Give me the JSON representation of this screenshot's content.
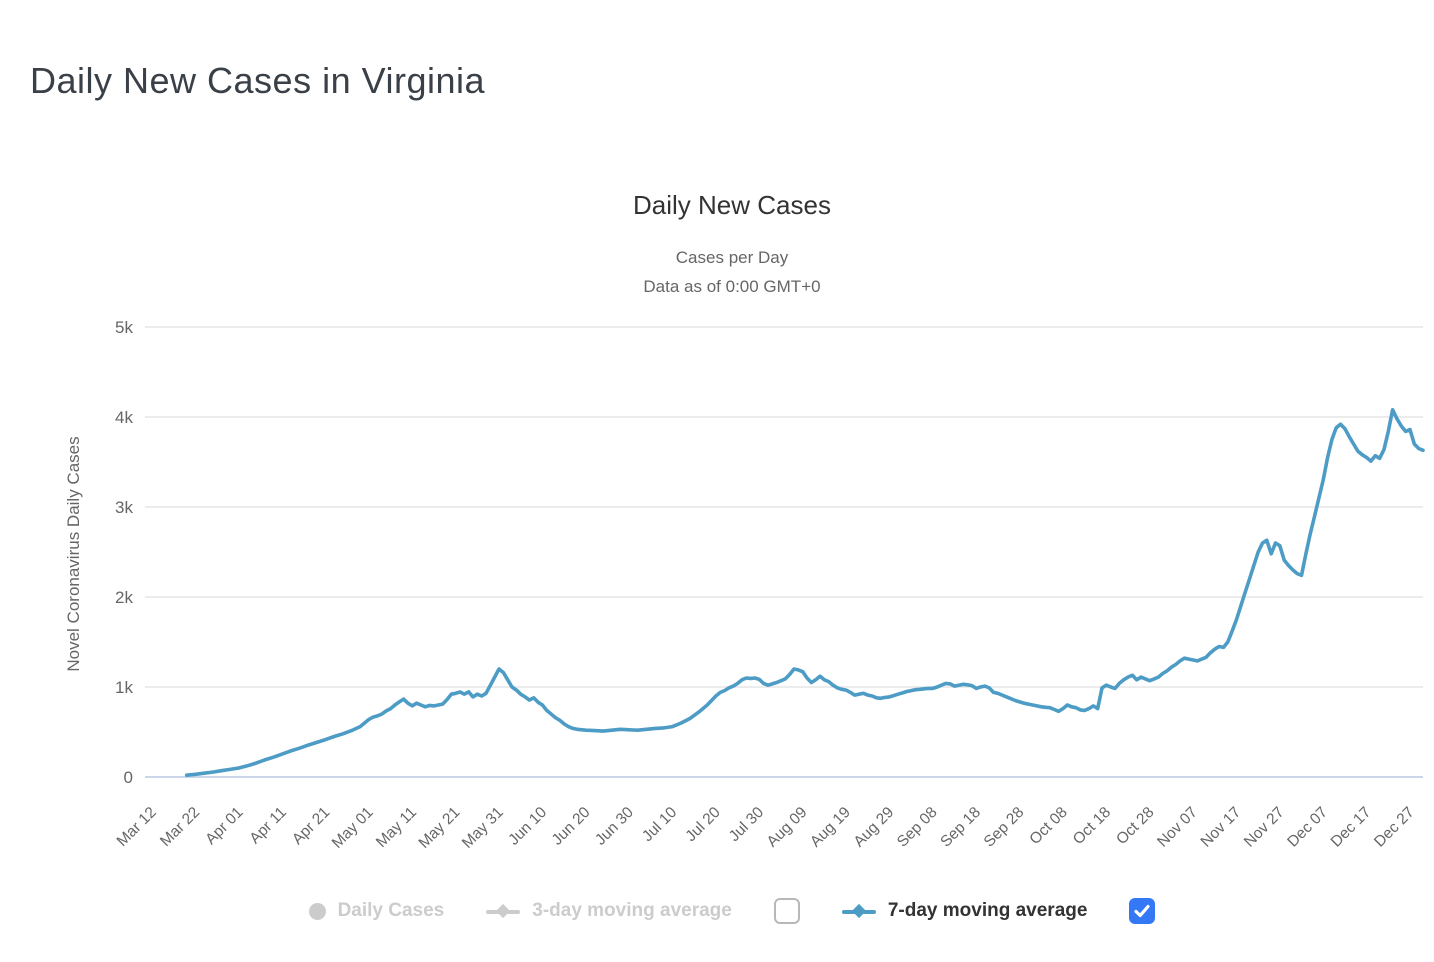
{
  "page": {
    "title": "Daily New Cases in Virginia"
  },
  "chart": {
    "title": "Daily New Cases",
    "subtitle_line1": "Cases per Day",
    "subtitle_line2": "Data as of 0:00 GMT+0",
    "y_axis_title": "Novel Coronavirus Daily Cases"
  },
  "legend": {
    "daily_cases_label": "Daily Cases",
    "three_day_label": "3-day moving average",
    "seven_day_label": "7-day moving average",
    "daily_cases_enabled": false,
    "three_day_enabled": false,
    "three_day_checkbox_checked": false,
    "seven_day_enabled": true,
    "seven_day_checkbox_checked": true
  },
  "colors": {
    "series_line": "#4d9cc5",
    "gridline": "#e6e6e6",
    "x_axis_line": "#ccd6eb",
    "axis_label": "#666666",
    "title": "#333333",
    "legend_disabled": "#cccccc",
    "checkbox_checked": "#3478f6"
  },
  "chart_data": {
    "type": "line",
    "title": "Daily New Cases",
    "subtitle": "Cases per Day / Data as of 0:00 GMT+0",
    "ylabel": "Novel Coronavirus Daily Cases",
    "ylim": [
      0,
      5000
    ],
    "y_tick_labels": [
      "0",
      "1k",
      "2k",
      "3k",
      "4k",
      "5k"
    ],
    "y_tick_values": [
      0,
      1000,
      2000,
      3000,
      4000,
      5000
    ],
    "x_start": "2020-03-12",
    "x_end": "2020-12-30",
    "x_tick_interval_days": 10,
    "x_tick_labels": [
      "Mar 12",
      "Mar 22",
      "Apr 01",
      "Apr 11",
      "Apr 21",
      "May 01",
      "May 11",
      "May 21",
      "May 31",
      "Jun 10",
      "Jun 20",
      "Jun 30",
      "Jul 10",
      "Jul 20",
      "Jul 30",
      "Aug 09",
      "Aug 19",
      "Aug 29",
      "Sep 08",
      "Sep 18",
      "Sep 28",
      "Oct 08",
      "Oct 18",
      "Oct 28",
      "Nov 07",
      "Nov 17",
      "Nov 27",
      "Dec 07",
      "Dec 17",
      "Dec 27"
    ],
    "grid": true,
    "legend_position": "bottom",
    "series": [
      {
        "name": "7-day moving average",
        "color": "#4d9cc5",
        "points": [
          [
            "2020-03-20",
            20
          ],
          [
            "2020-03-22",
            30
          ],
          [
            "2020-03-24",
            42
          ],
          [
            "2020-03-26",
            55
          ],
          [
            "2020-03-28",
            70
          ],
          [
            "2020-03-30",
            85
          ],
          [
            "2020-04-01",
            100
          ],
          [
            "2020-04-03",
            125
          ],
          [
            "2020-04-05",
            155
          ],
          [
            "2020-04-07",
            190
          ],
          [
            "2020-04-09",
            220
          ],
          [
            "2020-04-11",
            255
          ],
          [
            "2020-04-13",
            290
          ],
          [
            "2020-04-15",
            320
          ],
          [
            "2020-04-17",
            355
          ],
          [
            "2020-04-19",
            385
          ],
          [
            "2020-04-21",
            415
          ],
          [
            "2020-04-23",
            450
          ],
          [
            "2020-04-25",
            480
          ],
          [
            "2020-04-27",
            515
          ],
          [
            "2020-04-29",
            560
          ],
          [
            "2020-05-01",
            640
          ],
          [
            "2020-05-02",
            665
          ],
          [
            "2020-05-03",
            680
          ],
          [
            "2020-05-04",
            700
          ],
          [
            "2020-05-05",
            735
          ],
          [
            "2020-05-06",
            760
          ],
          [
            "2020-05-07",
            800
          ],
          [
            "2020-05-08",
            835
          ],
          [
            "2020-05-09",
            865
          ],
          [
            "2020-05-10",
            820
          ],
          [
            "2020-05-11",
            790
          ],
          [
            "2020-05-12",
            820
          ],
          [
            "2020-05-13",
            800
          ],
          [
            "2020-05-14",
            780
          ],
          [
            "2020-05-15",
            795
          ],
          [
            "2020-05-16",
            790
          ],
          [
            "2020-05-17",
            800
          ],
          [
            "2020-05-18",
            810
          ],
          [
            "2020-05-19",
            860
          ],
          [
            "2020-05-20",
            920
          ],
          [
            "2020-05-21",
            930
          ],
          [
            "2020-05-22",
            945
          ],
          [
            "2020-05-23",
            920
          ],
          [
            "2020-05-24",
            945
          ],
          [
            "2020-05-25",
            890
          ],
          [
            "2020-05-26",
            920
          ],
          [
            "2020-05-27",
            900
          ],
          [
            "2020-05-28",
            930
          ],
          [
            "2020-05-29",
            1020
          ],
          [
            "2020-05-30",
            1110
          ],
          [
            "2020-05-31",
            1200
          ],
          [
            "2020-06-01",
            1160
          ],
          [
            "2020-06-02",
            1080
          ],
          [
            "2020-06-03",
            1000
          ],
          [
            "2020-06-04",
            965
          ],
          [
            "2020-06-05",
            920
          ],
          [
            "2020-06-06",
            890
          ],
          [
            "2020-06-07",
            855
          ],
          [
            "2020-06-08",
            880
          ],
          [
            "2020-06-09",
            830
          ],
          [
            "2020-06-10",
            800
          ],
          [
            "2020-06-11",
            740
          ],
          [
            "2020-06-12",
            700
          ],
          [
            "2020-06-13",
            660
          ],
          [
            "2020-06-14",
            630
          ],
          [
            "2020-06-15",
            590
          ],
          [
            "2020-06-16",
            560
          ],
          [
            "2020-06-17",
            540
          ],
          [
            "2020-06-18",
            530
          ],
          [
            "2020-06-20",
            520
          ],
          [
            "2020-06-22",
            515
          ],
          [
            "2020-06-24",
            510
          ],
          [
            "2020-06-26",
            520
          ],
          [
            "2020-06-28",
            530
          ],
          [
            "2020-06-30",
            525
          ],
          [
            "2020-07-02",
            520
          ],
          [
            "2020-07-04",
            530
          ],
          [
            "2020-07-06",
            540
          ],
          [
            "2020-07-08",
            545
          ],
          [
            "2020-07-10",
            560
          ],
          [
            "2020-07-12",
            600
          ],
          [
            "2020-07-14",
            650
          ],
          [
            "2020-07-16",
            720
          ],
          [
            "2020-07-18",
            800
          ],
          [
            "2020-07-20",
            900
          ],
          [
            "2020-07-21",
            940
          ],
          [
            "2020-07-22",
            960
          ],
          [
            "2020-07-23",
            990
          ],
          [
            "2020-07-24",
            1010
          ],
          [
            "2020-07-25",
            1040
          ],
          [
            "2020-07-26",
            1080
          ],
          [
            "2020-07-27",
            1100
          ],
          [
            "2020-07-28",
            1095
          ],
          [
            "2020-07-29",
            1100
          ],
          [
            "2020-07-30",
            1085
          ],
          [
            "2020-07-31",
            1040
          ],
          [
            "2020-08-01",
            1020
          ],
          [
            "2020-08-02",
            1035
          ],
          [
            "2020-08-03",
            1050
          ],
          [
            "2020-08-04",
            1070
          ],
          [
            "2020-08-05",
            1090
          ],
          [
            "2020-08-06",
            1140
          ],
          [
            "2020-08-07",
            1200
          ],
          [
            "2020-08-08",
            1190
          ],
          [
            "2020-08-09",
            1170
          ],
          [
            "2020-08-10",
            1100
          ],
          [
            "2020-08-11",
            1050
          ],
          [
            "2020-08-12",
            1080
          ],
          [
            "2020-08-13",
            1120
          ],
          [
            "2020-08-14",
            1080
          ],
          [
            "2020-08-15",
            1060
          ],
          [
            "2020-08-16",
            1020
          ],
          [
            "2020-08-17",
            990
          ],
          [
            "2020-08-18",
            975
          ],
          [
            "2020-08-19",
            965
          ],
          [
            "2020-08-20",
            940
          ],
          [
            "2020-08-21",
            910
          ],
          [
            "2020-08-22",
            920
          ],
          [
            "2020-08-23",
            930
          ],
          [
            "2020-08-24",
            910
          ],
          [
            "2020-08-25",
            900
          ],
          [
            "2020-08-26",
            880
          ],
          [
            "2020-08-27",
            875
          ],
          [
            "2020-08-28",
            885
          ],
          [
            "2020-08-29",
            890
          ],
          [
            "2020-08-30",
            905
          ],
          [
            "2020-08-31",
            920
          ],
          [
            "2020-09-01",
            935
          ],
          [
            "2020-09-02",
            950
          ],
          [
            "2020-09-03",
            960
          ],
          [
            "2020-09-04",
            970
          ],
          [
            "2020-09-05",
            975
          ],
          [
            "2020-09-06",
            980
          ],
          [
            "2020-09-07",
            985
          ],
          [
            "2020-09-08",
            985
          ],
          [
            "2020-09-09",
            1000
          ],
          [
            "2020-09-10",
            1020
          ],
          [
            "2020-09-11",
            1040
          ],
          [
            "2020-09-12",
            1035
          ],
          [
            "2020-09-13",
            1010
          ],
          [
            "2020-09-14",
            1020
          ],
          [
            "2020-09-15",
            1030
          ],
          [
            "2020-09-16",
            1025
          ],
          [
            "2020-09-17",
            1015
          ],
          [
            "2020-09-18",
            985
          ],
          [
            "2020-09-19",
            1000
          ],
          [
            "2020-09-20",
            1010
          ],
          [
            "2020-09-21",
            990
          ],
          [
            "2020-09-22",
            940
          ],
          [
            "2020-09-23",
            930
          ],
          [
            "2020-09-24",
            910
          ],
          [
            "2020-09-25",
            890
          ],
          [
            "2020-09-26",
            870
          ],
          [
            "2020-09-27",
            850
          ],
          [
            "2020-09-28",
            835
          ],
          [
            "2020-09-29",
            820
          ],
          [
            "2020-09-30",
            810
          ],
          [
            "2020-10-01",
            800
          ],
          [
            "2020-10-02",
            790
          ],
          [
            "2020-10-03",
            780
          ],
          [
            "2020-10-04",
            775
          ],
          [
            "2020-10-05",
            770
          ],
          [
            "2020-10-06",
            750
          ],
          [
            "2020-10-07",
            730
          ],
          [
            "2020-10-08",
            760
          ],
          [
            "2020-10-09",
            800
          ],
          [
            "2020-10-10",
            780
          ],
          [
            "2020-10-11",
            770
          ],
          [
            "2020-10-12",
            745
          ],
          [
            "2020-10-13",
            740
          ],
          [
            "2020-10-14",
            760
          ],
          [
            "2020-10-15",
            790
          ],
          [
            "2020-10-16",
            760
          ],
          [
            "2020-10-17",
            990
          ],
          [
            "2020-10-18",
            1020
          ],
          [
            "2020-10-19",
            1000
          ],
          [
            "2020-10-20",
            985
          ],
          [
            "2020-10-21",
            1040
          ],
          [
            "2020-10-22",
            1080
          ],
          [
            "2020-10-23",
            1110
          ],
          [
            "2020-10-24",
            1130
          ],
          [
            "2020-10-25",
            1080
          ],
          [
            "2020-10-26",
            1110
          ],
          [
            "2020-10-27",
            1090
          ],
          [
            "2020-10-28",
            1070
          ],
          [
            "2020-10-29",
            1090
          ],
          [
            "2020-10-30",
            1110
          ],
          [
            "2020-10-31",
            1150
          ],
          [
            "2020-11-01",
            1180
          ],
          [
            "2020-11-02",
            1220
          ],
          [
            "2020-11-03",
            1250
          ],
          [
            "2020-11-04",
            1290
          ],
          [
            "2020-11-05",
            1320
          ],
          [
            "2020-11-06",
            1310
          ],
          [
            "2020-11-07",
            1300
          ],
          [
            "2020-11-08",
            1290
          ],
          [
            "2020-11-09",
            1310
          ],
          [
            "2020-11-10",
            1330
          ],
          [
            "2020-11-11",
            1380
          ],
          [
            "2020-11-12",
            1420
          ],
          [
            "2020-11-13",
            1450
          ],
          [
            "2020-11-14",
            1440
          ],
          [
            "2020-11-15",
            1500
          ],
          [
            "2020-11-16",
            1620
          ],
          [
            "2020-11-17",
            1750
          ],
          [
            "2020-11-18",
            1900
          ],
          [
            "2020-11-19",
            2050
          ],
          [
            "2020-11-20",
            2200
          ],
          [
            "2020-11-21",
            2350
          ],
          [
            "2020-11-22",
            2500
          ],
          [
            "2020-11-23",
            2600
          ],
          [
            "2020-11-24",
            2630
          ],
          [
            "2020-11-25",
            2480
          ],
          [
            "2020-11-26",
            2600
          ],
          [
            "2020-11-27",
            2570
          ],
          [
            "2020-11-28",
            2410
          ],
          [
            "2020-11-29",
            2350
          ],
          [
            "2020-11-30",
            2300
          ],
          [
            "2020-12-01",
            2260
          ],
          [
            "2020-12-02",
            2240
          ],
          [
            "2020-12-03",
            2480
          ],
          [
            "2020-12-04",
            2700
          ],
          [
            "2020-12-05",
            2900
          ],
          [
            "2020-12-06",
            3100
          ],
          [
            "2020-12-07",
            3300
          ],
          [
            "2020-12-08",
            3550
          ],
          [
            "2020-12-09",
            3750
          ],
          [
            "2020-12-10",
            3880
          ],
          [
            "2020-12-11",
            3920
          ],
          [
            "2020-12-12",
            3870
          ],
          [
            "2020-12-13",
            3780
          ],
          [
            "2020-12-14",
            3700
          ],
          [
            "2020-12-15",
            3620
          ],
          [
            "2020-12-16",
            3580
          ],
          [
            "2020-12-17",
            3550
          ],
          [
            "2020-12-18",
            3510
          ],
          [
            "2020-12-19",
            3570
          ],
          [
            "2020-12-20",
            3540
          ],
          [
            "2020-12-21",
            3640
          ],
          [
            "2020-12-22",
            3840
          ],
          [
            "2020-12-23",
            4080
          ],
          [
            "2020-12-24",
            3980
          ],
          [
            "2020-12-25",
            3900
          ],
          [
            "2020-12-26",
            3840
          ],
          [
            "2020-12-27",
            3860
          ],
          [
            "2020-12-28",
            3700
          ],
          [
            "2020-12-29",
            3650
          ],
          [
            "2020-12-30",
            3630
          ]
        ]
      }
    ]
  }
}
